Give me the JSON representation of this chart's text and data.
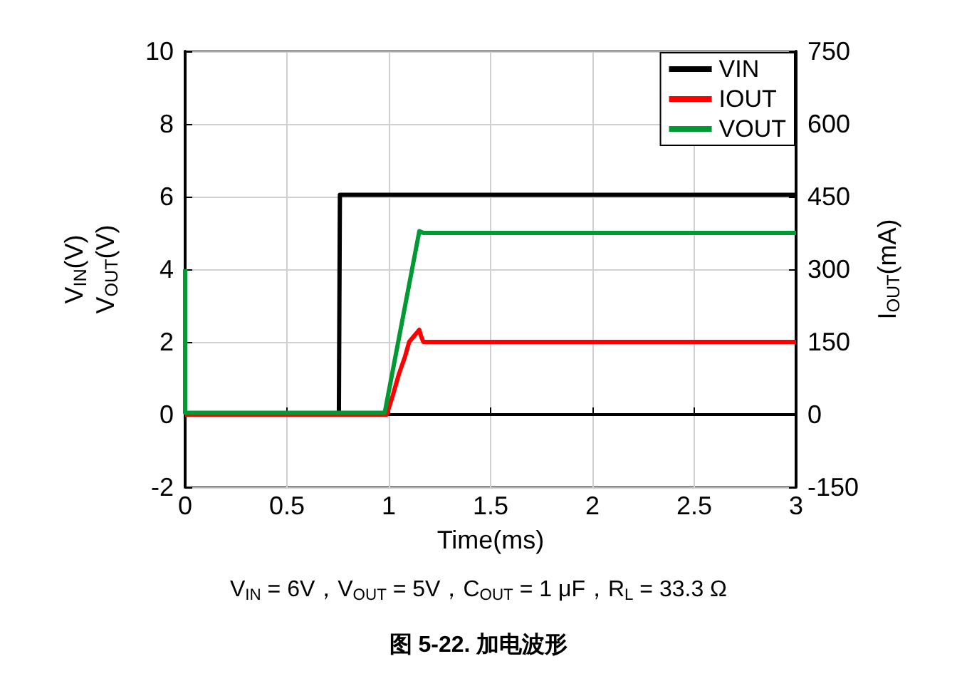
{
  "chart_data": {
    "type": "line",
    "title": "图 5-22. 加电波形",
    "xlabel": "Time(ms)",
    "ylabel": "V$_{IN}$(V)\nV$_{OUT}$(V)",
    "y2label": "I$_{OUT}$(mA)",
    "annotations": [
      "V$_{IN}$ = 6V，V$_{OUT}$ = 5V，C$_{OUT}$ = 1 μF，R$_{L}$ = 33.3 Ω"
    ],
    "series": [
      {
        "name": "VIN",
        "color": "#000000",
        "x": [
          0,
          0.755,
          0.76,
          3
        ],
        "values": [
          0,
          0,
          6.05,
          6.05
        ]
      },
      {
        "name": "IOUT",
        "color": "#ff0000",
        "axis": "y2",
        "x": [
          0,
          0.99,
          1.02,
          1.05,
          1.08,
          1.1,
          1.13,
          1.15,
          1.16,
          1.17,
          3
        ],
        "values": [
          0,
          0,
          40,
          84,
          120,
          150,
          165,
          175,
          160,
          150,
          150
        ]
      },
      {
        "name": "VOUT",
        "color": "#009933",
        "x": [
          0,
          0,
          0.005,
          0.98,
          1.15,
          1.17,
          3
        ],
        "values": [
          4,
          0.05,
          0.05,
          0.05,
          5.05,
          5,
          5
        ]
      }
    ],
    "xlim": [
      0,
      3
    ],
    "xticks": [
      0,
      0.5,
      1,
      1.5,
      2,
      2.5,
      3
    ],
    "ylim": [
      -2,
      10
    ],
    "yticks": [
      -2,
      0,
      2,
      4,
      6,
      8,
      10
    ],
    "y2lim": [
      -150,
      750
    ],
    "y2ticks": [
      -150,
      0,
      150,
      300,
      450,
      600,
      750
    ],
    "grid": true,
    "legend": "top right",
    "line_style": "solid",
    "marker": "none"
  }
}
